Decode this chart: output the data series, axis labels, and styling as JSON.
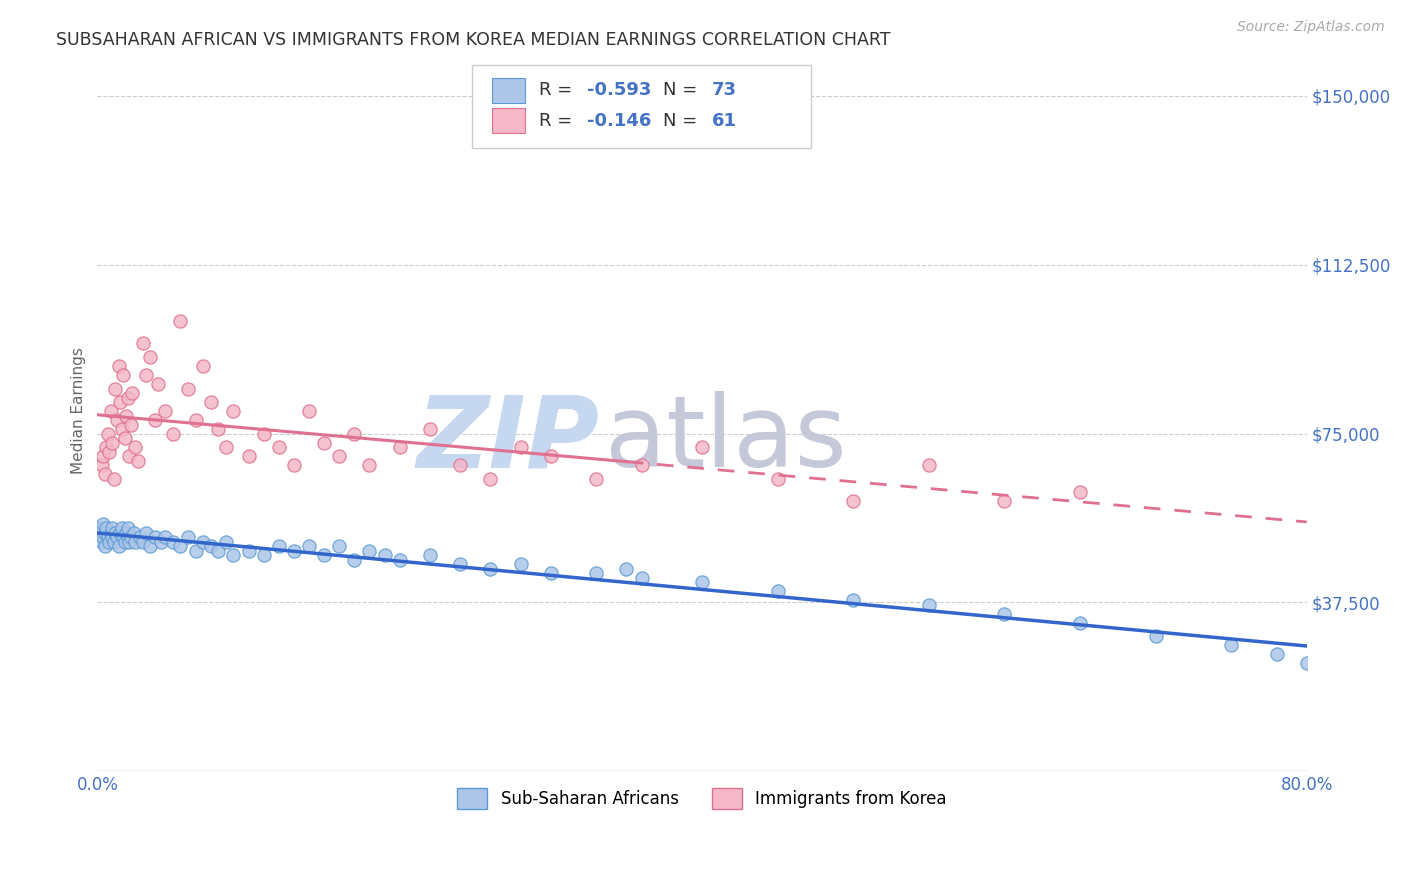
{
  "title": "SUBSAHARAN AFRICAN VS IMMIGRANTS FROM KOREA MEDIAN EARNINGS CORRELATION CHART",
  "source": "Source: ZipAtlas.com",
  "ylabel": "Median Earnings",
  "yticks": [
    0,
    37500,
    75000,
    112500,
    150000
  ],
  "ytick_labels": [
    "",
    "$37,500",
    "$75,000",
    "$112,500",
    "$150,000"
  ],
  "xlim": [
    0.0,
    80.0
  ],
  "ylim": [
    0,
    160000
  ],
  "blue_series": {
    "label": "Sub-Saharan Africans",
    "R": -0.593,
    "N": 73,
    "face_color": "#adc6e8",
    "edge_color": "#5b9bd5",
    "line_color": "#3366cc",
    "line_style": "solid",
    "x": [
      0.2,
      0.3,
      0.3,
      0.4,
      0.4,
      0.5,
      0.5,
      0.6,
      0.7,
      0.8,
      0.9,
      1.0,
      1.0,
      1.1,
      1.2,
      1.3,
      1.4,
      1.5,
      1.6,
      1.7,
      1.8,
      1.9,
      2.0,
      2.0,
      2.1,
      2.2,
      2.4,
      2.5,
      2.8,
      3.0,
      3.2,
      3.5,
      3.8,
      4.2,
      4.5,
      5.0,
      5.5,
      6.0,
      6.5,
      7.0,
      7.5,
      8.0,
      8.5,
      9.0,
      10.0,
      11.0,
      12.0,
      13.0,
      14.0,
      15.0,
      16.0,
      17.0,
      18.0,
      19.0,
      20.0,
      22.0,
      24.0,
      26.0,
      28.0,
      30.0,
      33.0,
      36.0,
      40.0,
      45.0,
      50.0,
      55.0,
      60.0,
      65.0,
      70.0,
      75.0,
      78.0,
      80.0,
      35.0
    ],
    "y": [
      53000,
      51000,
      54000,
      52000,
      55000,
      50000,
      53000,
      54000,
      52000,
      51000,
      53000,
      52000,
      54000,
      51000,
      53000,
      52000,
      50000,
      53000,
      54000,
      52000,
      51000,
      53000,
      52000,
      54000,
      51000,
      52000,
      53000,
      51000,
      52000,
      51000,
      53000,
      50000,
      52000,
      51000,
      52000,
      51000,
      50000,
      52000,
      49000,
      51000,
      50000,
      49000,
      51000,
      48000,
      49000,
      48000,
      50000,
      49000,
      50000,
      48000,
      50000,
      47000,
      49000,
      48000,
      47000,
      48000,
      46000,
      45000,
      46000,
      44000,
      44000,
      43000,
      42000,
      40000,
      38000,
      37000,
      35000,
      33000,
      30000,
      28000,
      26000,
      24000,
      45000
    ]
  },
  "pink_series": {
    "label": "Immigrants from Korea",
    "R": -0.146,
    "N": 61,
    "face_color": "#f4b8c8",
    "edge_color": "#e07090",
    "line_color": "#e07090",
    "line_style": "solid_then_dashed",
    "solid_x_end": 35.0,
    "x": [
      0.3,
      0.4,
      0.5,
      0.6,
      0.7,
      0.8,
      0.9,
      1.0,
      1.1,
      1.2,
      1.3,
      1.4,
      1.5,
      1.6,
      1.7,
      1.8,
      1.9,
      2.0,
      2.1,
      2.2,
      2.3,
      2.5,
      2.7,
      3.0,
      3.2,
      3.5,
      3.8,
      4.0,
      4.5,
      5.0,
      5.5,
      6.0,
      6.5,
      7.0,
      7.5,
      8.0,
      8.5,
      9.0,
      10.0,
      11.0,
      12.0,
      13.0,
      14.0,
      15.0,
      16.0,
      17.0,
      18.0,
      20.0,
      22.0,
      24.0,
      26.0,
      28.0,
      30.0,
      33.0,
      36.0,
      40.0,
      45.0,
      50.0,
      55.0,
      60.0,
      65.0
    ],
    "y": [
      68000,
      70000,
      66000,
      72000,
      75000,
      71000,
      80000,
      73000,
      65000,
      85000,
      78000,
      90000,
      82000,
      76000,
      88000,
      74000,
      79000,
      83000,
      70000,
      77000,
      84000,
      72000,
      69000,
      95000,
      88000,
      92000,
      78000,
      86000,
      80000,
      75000,
      100000,
      85000,
      78000,
      90000,
      82000,
      76000,
      72000,
      80000,
      70000,
      75000,
      72000,
      68000,
      80000,
      73000,
      70000,
      75000,
      68000,
      72000,
      76000,
      68000,
      65000,
      72000,
      70000,
      65000,
      68000,
      72000,
      65000,
      60000,
      68000,
      60000,
      62000
    ]
  },
  "watermark_zip": "ZIP",
  "watermark_atlas": "atlas",
  "watermark_color_zip": "#c5d8f0",
  "watermark_color_atlas": "#c5c8d8",
  "background_color": "#ffffff",
  "grid_color": "#cccccc",
  "title_color": "#333333",
  "tick_color": "#4472c4",
  "source_color": "#aaaaaa"
}
